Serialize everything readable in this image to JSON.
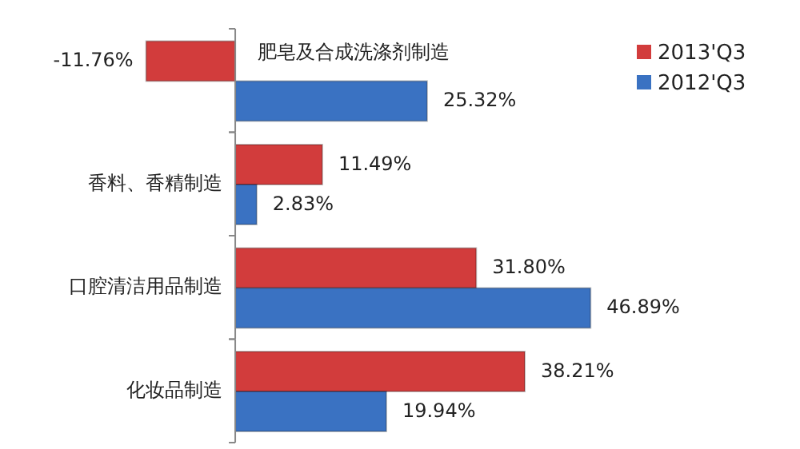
{
  "chart_data": {
    "type": "bar",
    "orientation": "horizontal",
    "categories": [
      "肥皂及合成洗涤剂制造",
      "香料、香精制造",
      "口腔清洁用品制造",
      "化妆品制造"
    ],
    "series": [
      {
        "name": "2013'Q3",
        "color": "#d23c3c",
        "values": [
          -11.76,
          11.49,
          31.8,
          38.21
        ],
        "value_labels": [
          "-11.76%",
          "11.49%",
          "31.80%",
          "38.21%"
        ]
      },
      {
        "name": "2012'Q3",
        "color": "#3a72c2",
        "values": [
          25.32,
          2.83,
          46.89,
          19.94
        ],
        "value_labels": [
          "25.32%",
          "2.83%",
          "46.89%",
          "19.94%"
        ]
      }
    ],
    "legend": "top right",
    "grid": false
  }
}
